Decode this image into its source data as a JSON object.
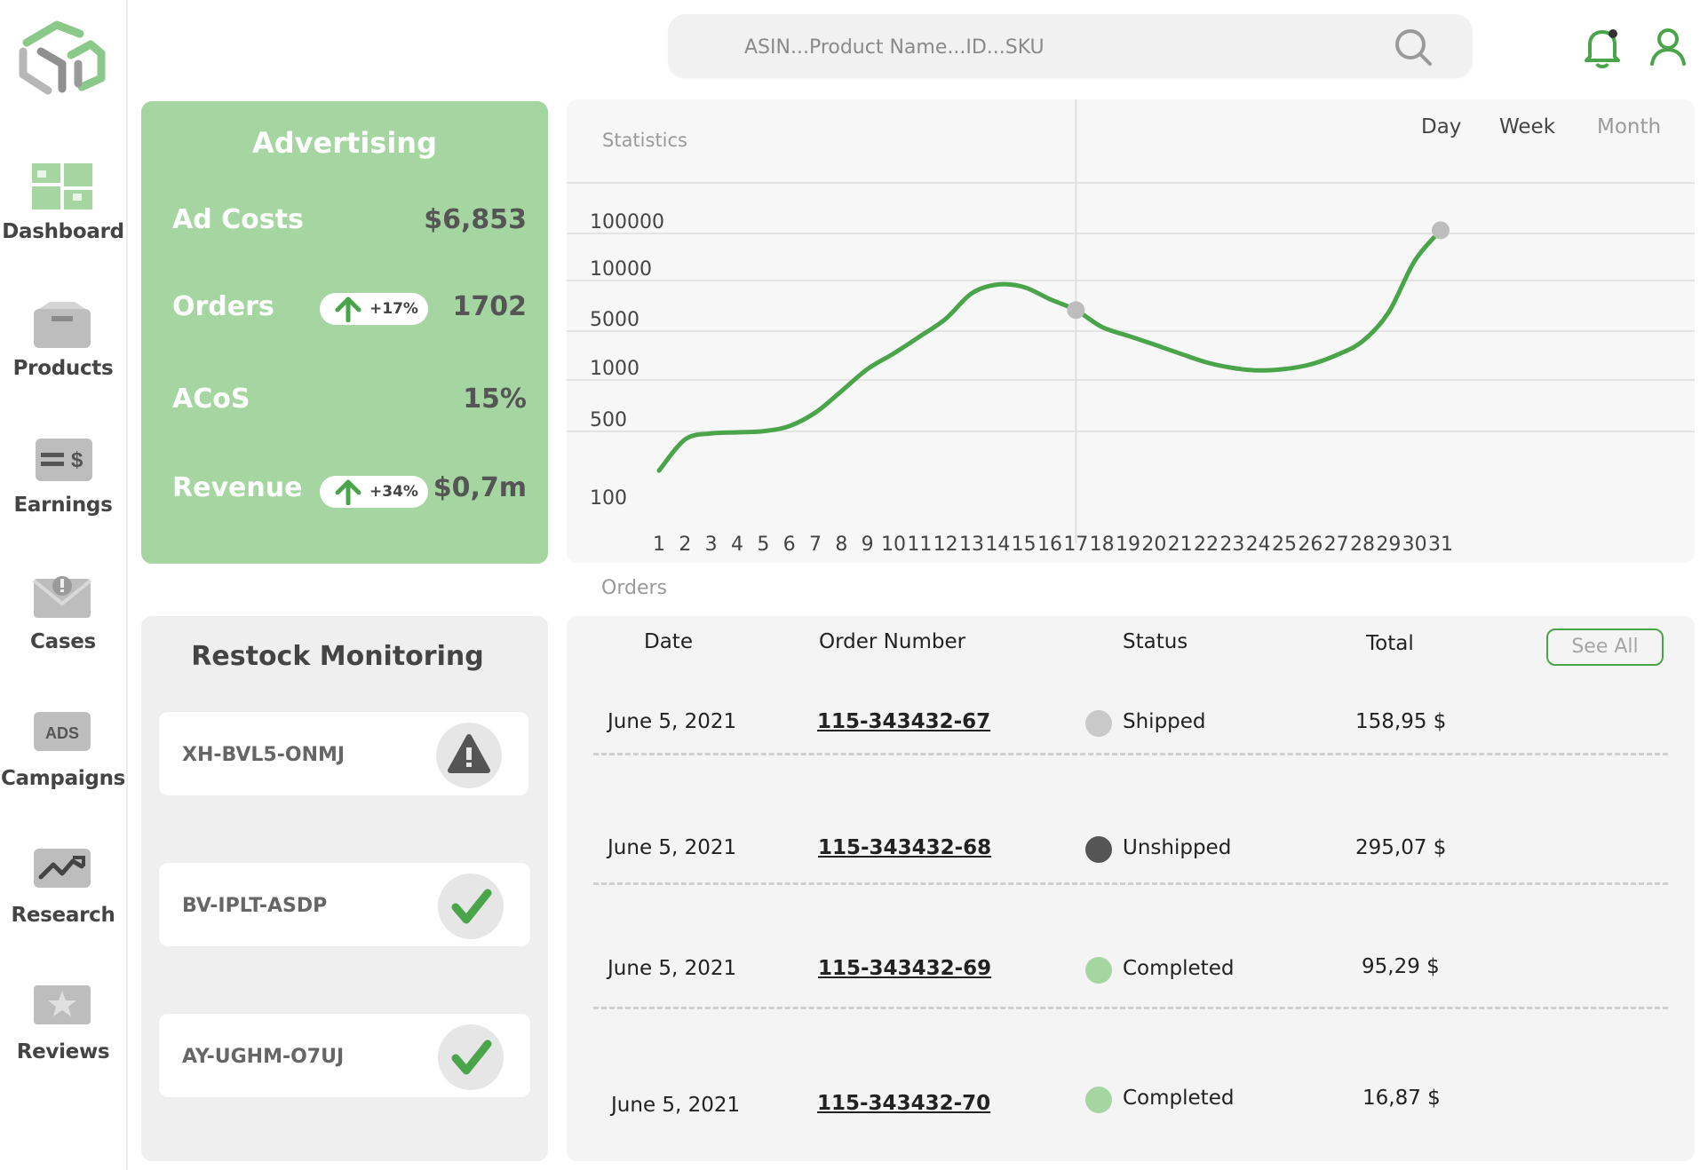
{
  "colors": {
    "accent_green": "#4aa54a",
    "card_green": "#a5d6a1",
    "status_shipped": "#c9c9c9",
    "status_unshipped": "#555555",
    "status_completed": "#a5d6a1"
  },
  "sidebar": {
    "items": [
      {
        "label": "Dashboard",
        "icon": "dashboard-icon"
      },
      {
        "label": "Products",
        "icon": "box-icon"
      },
      {
        "label": "Earnings",
        "icon": "money-icon"
      },
      {
        "label": "Cases",
        "icon": "envelope-alert-icon"
      },
      {
        "label": "Campaigns",
        "icon": "ads-icon",
        "icon_text": "ADS"
      },
      {
        "label": "Research",
        "icon": "trend-icon"
      },
      {
        "label": "Reviews",
        "icon": "star-icon"
      }
    ]
  },
  "search": {
    "placeholder": "ASIN...Product Name...ID...SKU"
  },
  "advertising": {
    "title": "Advertising",
    "metrics": [
      {
        "label": "Ad Costs",
        "value": "$6,853"
      },
      {
        "label": "Orders",
        "value": "1702",
        "change": "+17%"
      },
      {
        "label": "ACoS",
        "value": "15%"
      },
      {
        "label": "Revenue",
        "value": "$0,7m",
        "change": "+34%"
      }
    ]
  },
  "statistics": {
    "label": "Statistics",
    "ranges": [
      "Day",
      "Week",
      "Month"
    ],
    "active_range": "Month"
  },
  "chart_data": {
    "type": "line",
    "title": "Statistics",
    "y_scale": "categorical-log",
    "y_ticks": [
      "100000",
      "10000",
      "5000",
      "1000",
      "500",
      "100"
    ],
    "x": [
      1,
      2,
      3,
      4,
      5,
      6,
      7,
      8,
      9,
      10,
      11,
      12,
      13,
      14,
      15,
      16,
      17,
      18,
      19,
      20,
      21,
      22,
      23,
      24,
      25,
      26,
      27,
      28,
      29,
      30,
      31
    ],
    "x_labels": [
      "1",
      "2",
      "3",
      "4",
      "5",
      "6",
      "7",
      "8",
      "9",
      "10",
      "11",
      "12",
      "13",
      "14",
      "15",
      "16",
      "17",
      "18",
      "19",
      "20",
      "21",
      "22",
      "23",
      "24",
      "25",
      "26",
      "27",
      "28",
      "29",
      "30",
      "31"
    ],
    "series": [
      {
        "values": [
          200,
          380,
          430,
          440,
          450,
          500,
          600,
          800,
          1200,
          2000,
          3500,
          5500,
          7800,
          8800,
          8500,
          7200,
          6200,
          4800,
          3600,
          2700,
          2000,
          1500,
          1250,
          1150,
          1200,
          1400,
          1900,
          3000,
          6000,
          20000,
          90000
        ]
      }
    ],
    "highlight_points": [
      {
        "x": 17,
        "y": 6200
      },
      {
        "x": 31,
        "y": 90000
      }
    ],
    "grid": true
  },
  "orders": {
    "caption": "Orders",
    "columns": [
      "Date",
      "Order Number",
      "Status",
      "Total"
    ],
    "see_all": "See All",
    "rows": [
      {
        "date": "June 5, 2021",
        "number": "115-343432-67",
        "status": "Shipped",
        "total": "158,95 $"
      },
      {
        "date": "June 5, 2021",
        "number": "115-343432-68",
        "status": "Unshipped",
        "total": "295,07 $"
      },
      {
        "date": "June 5, 2021",
        "number": "115-343432-69",
        "status": "Completed",
        "total": "95,29 $"
      },
      {
        "date": "June 5, 2021",
        "number": "115-343432-70",
        "status": "Completed",
        "total": "16,87 $"
      }
    ]
  },
  "restock": {
    "title": "Restock Monitoring",
    "items": [
      {
        "sku": "XH-BVL5-ONMJ",
        "state": "warning-icon"
      },
      {
        "sku": "BV-IPLT-ASDP",
        "state": "check-icon"
      },
      {
        "sku": "AY-UGHM-O7UJ",
        "state": "check-icon"
      }
    ]
  }
}
